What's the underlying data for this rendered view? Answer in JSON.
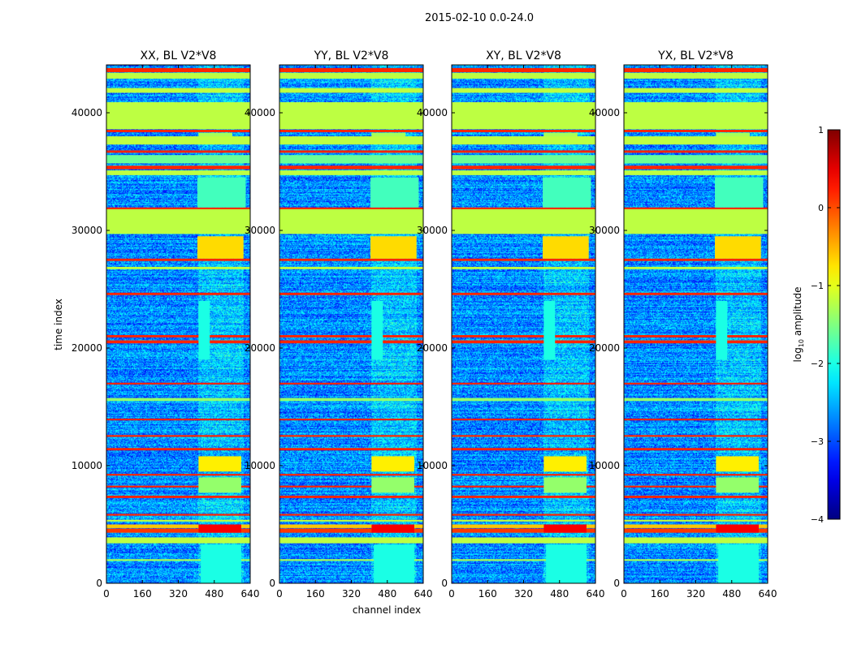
{
  "chart_data": {
    "type": "heatmap",
    "title": "2015-02-10 0.0-24.0",
    "xlabel": "channel index",
    "ylabel": "time index",
    "xlim": [
      0,
      640
    ],
    "ylim": [
      0,
      44070
    ],
    "xticks": [
      "0",
      "160",
      "320",
      "480",
      "640"
    ],
    "xtick_values": [
      0,
      160,
      320,
      480,
      640
    ],
    "yticks": [
      "0",
      "10000",
      "20000",
      "30000",
      "40000"
    ],
    "ytick_values": [
      0,
      10000,
      20000,
      30000,
      40000
    ],
    "colorbar": {
      "label_main": "log",
      "label_sub": "10",
      "label_rest": " amplitude",
      "range": [
        -4,
        1
      ],
      "ticks": [
        "1",
        "0",
        "−1",
        "−2",
        "−3",
        "−4"
      ],
      "tick_values": [
        1,
        0,
        -1,
        -2,
        -3,
        -4
      ],
      "colormap": "jet"
    },
    "background_level": -2.7,
    "panels": [
      {
        "title": "XX, BL V2*V8"
      },
      {
        "title": "YY, BL V2*V8"
      },
      {
        "title": "XY, BL V2*V8"
      },
      {
        "title": "YX, BL V2*V8"
      }
    ],
    "bands": [
      {
        "t0": 43450,
        "t1": 43800,
        "ch0": 0,
        "ch1": 640,
        "value": 0.2
      },
      {
        "t0": 42900,
        "t1": 43400,
        "ch0": 0,
        "ch1": 640,
        "value": -1.2
      },
      {
        "t0": 41700,
        "t1": 42100,
        "ch0": 0,
        "ch1": 640,
        "value": -1.2
      },
      {
        "t0": 38600,
        "t1": 40900,
        "ch0": 0,
        "ch1": 640,
        "value": -1.2
      },
      {
        "t0": 38350,
        "t1": 38550,
        "ch0": 0,
        "ch1": 640,
        "value": 0.2
      },
      {
        "t0": 37300,
        "t1": 38000,
        "ch0": 0,
        "ch1": 640,
        "value": -1.2
      },
      {
        "t0": 36600,
        "t1": 36800,
        "ch0": 0,
        "ch1": 640,
        "value": 0.2
      },
      {
        "t0": 35700,
        "t1": 36400,
        "ch0": 0,
        "ch1": 640,
        "value": -1.6
      },
      {
        "t0": 35200,
        "t1": 35500,
        "ch0": 0,
        "ch1": 640,
        "value": 0.2
      },
      {
        "t0": 34700,
        "t1": 35100,
        "ch0": 0,
        "ch1": 640,
        "value": -1.2
      },
      {
        "t0": 29700,
        "t1": 31900,
        "ch0": 0,
        "ch1": 640,
        "value": -1.2
      },
      {
        "t0": 31800,
        "t1": 31950,
        "ch0": 0,
        "ch1": 640,
        "value": 0.2
      },
      {
        "t0": 27400,
        "t1": 27600,
        "ch0": 0,
        "ch1": 640,
        "value": 0.2
      },
      {
        "t0": 26700,
        "t1": 26900,
        "ch0": 0,
        "ch1": 640,
        "value": -1.2
      },
      {
        "t0": 24500,
        "t1": 24700,
        "ch0": 0,
        "ch1": 640,
        "value": 0.2
      },
      {
        "t0": 20900,
        "t1": 21100,
        "ch0": 0,
        "ch1": 640,
        "value": 0.2
      },
      {
        "t0": 20400,
        "t1": 20650,
        "ch0": 0,
        "ch1": 640,
        "value": 0.2
      },
      {
        "t0": 16900,
        "t1": 17050,
        "ch0": 0,
        "ch1": 640,
        "value": 0.2
      },
      {
        "t0": 15500,
        "t1": 15750,
        "ch0": 0,
        "ch1": 640,
        "value": -1.4
      },
      {
        "t0": 13850,
        "t1": 14000,
        "ch0": 0,
        "ch1": 640,
        "value": 0.2
      },
      {
        "t0": 12450,
        "t1": 12600,
        "ch0": 0,
        "ch1": 640,
        "value": 0.2
      },
      {
        "t0": 11300,
        "t1": 11500,
        "ch0": 0,
        "ch1": 640,
        "value": 0.2
      },
      {
        "t0": 9150,
        "t1": 9300,
        "ch0": 0,
        "ch1": 640,
        "value": 0.2
      },
      {
        "t0": 8150,
        "t1": 8300,
        "ch0": 0,
        "ch1": 640,
        "value": 0.2
      },
      {
        "t0": 7250,
        "t1": 7450,
        "ch0": 0,
        "ch1": 640,
        "value": 0.2
      },
      {
        "t0": 5750,
        "t1": 5900,
        "ch0": 0,
        "ch1": 640,
        "value": 0.2
      },
      {
        "t0": 5250,
        "t1": 5400,
        "ch0": 0,
        "ch1": 640,
        "value": -1.2
      },
      {
        "t0": 4700,
        "t1": 5000,
        "ch0": 0,
        "ch1": 640,
        "value": -0.6
      },
      {
        "t0": 4300,
        "t1": 4650,
        "ch0": 0,
        "ch1": 640,
        "value": 0.1
      },
      {
        "t0": 3400,
        "t1": 3900,
        "ch0": 0,
        "ch1": 640,
        "value": -1.2
      },
      {
        "t0": 1900,
        "t1": 2050,
        "ch0": 0,
        "ch1": 640,
        "value": -1.3
      },
      {
        "t0": 27600,
        "t1": 29500,
        "ch0": 405,
        "ch1": 610,
        "value": -0.7
      },
      {
        "t0": 31950,
        "t1": 34500,
        "ch0": 405,
        "ch1": 620,
        "value": -1.8
      },
      {
        "t0": 38000,
        "t1": 38300,
        "ch0": 410,
        "ch1": 560,
        "value": -1.3
      },
      {
        "t0": 9500,
        "t1": 10800,
        "ch0": 410,
        "ch1": 600,
        "value": -0.8
      },
      {
        "t0": 7700,
        "t1": 9000,
        "ch0": 410,
        "ch1": 600,
        "value": -1.4
      },
      {
        "t0": 4300,
        "t1": 5000,
        "ch0": 410,
        "ch1": 600,
        "value": 0.4
      },
      {
        "t0": 19000,
        "t1": 24000,
        "ch0": 410,
        "ch1": 460,
        "value": -2.0
      },
      {
        "t0": 0,
        "t1": 3300,
        "ch0": 420,
        "ch1": 600,
        "value": -2.0
      }
    ]
  }
}
